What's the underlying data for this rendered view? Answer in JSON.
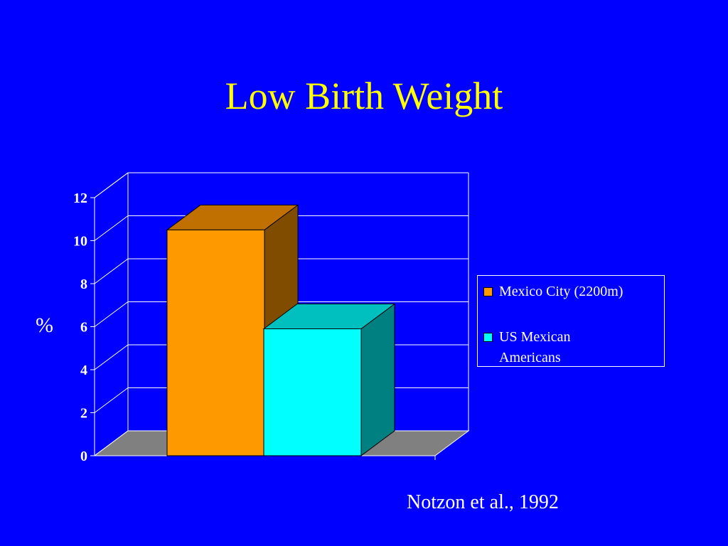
{
  "title": "Low Birth Weight",
  "source": "Notzon et al., 1992",
  "colors": {
    "background": "#0000ff",
    "title": "#ffff00",
    "floor": "#808080",
    "series_front": [
      "#ff9900",
      "#00ffff"
    ],
    "series_top": [
      "#c07000",
      "#00bfbf"
    ],
    "series_side": [
      "#7f4c00",
      "#008080"
    ]
  },
  "chart_data": {
    "type": "bar",
    "ylabel": "%",
    "ylim": [
      0,
      12
    ],
    "yticks": [
      "0",
      "2",
      "4",
      "6",
      "8",
      "10",
      "12"
    ],
    "grid": true,
    "legend_position": "right",
    "series": [
      {
        "name": "Mexico City (2200m)",
        "value": 10.5
      },
      {
        "name": "US Mexican Americans",
        "value": 5.9
      }
    ]
  },
  "legend": {
    "items": [
      {
        "lines": [
          "Mexico City (2200m)"
        ]
      },
      {
        "lines": [
          "US Mexican",
          "Americans"
        ]
      }
    ]
  }
}
